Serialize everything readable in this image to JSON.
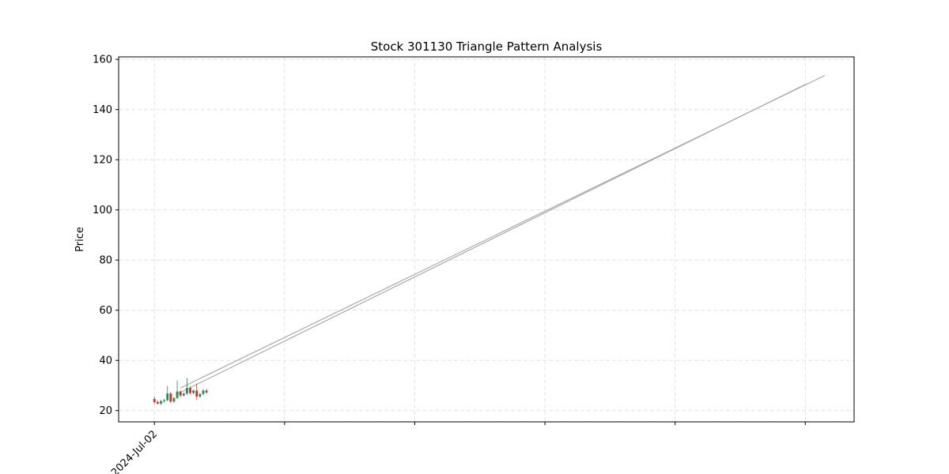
{
  "chart_data": {
    "type": "candlestick",
    "title": "Stock 301130 Triangle Pattern Analysis",
    "xlabel": "",
    "ylabel": "Price",
    "ylim": [
      15.5,
      161
    ],
    "xlim": [
      -11,
      215
    ],
    "x_ticks": [
      0,
      40,
      80,
      120,
      160,
      200
    ],
    "x_tick_labels": [
      "2024-Jul-02",
      "",
      "",
      "",
      "",
      ""
    ],
    "y_ticks": [
      20,
      40,
      60,
      80,
      100,
      120,
      140,
      160
    ],
    "y_tick_labels": [
      "20",
      "40",
      "60",
      "80",
      "100",
      "120",
      "140",
      "160"
    ],
    "grid": true,
    "colors": {
      "up": "#2e8b57",
      "down": "#c0392b",
      "trendline": "#aaaaaa",
      "grid": "#dddddd"
    },
    "candles": [
      {
        "x": 0,
        "open": 24.6,
        "high": 25.6,
        "low": 22.6,
        "close": 23.4
      },
      {
        "x": 1,
        "open": 23.4,
        "high": 24.0,
        "low": 22.4,
        "close": 22.8
      },
      {
        "x": 2,
        "open": 22.8,
        "high": 24.2,
        "low": 22.2,
        "close": 23.8
      },
      {
        "x": 3,
        "open": 23.8,
        "high": 24.6,
        "low": 23.0,
        "close": 24.2
      },
      {
        "x": 4,
        "open": 24.2,
        "high": 29.8,
        "low": 23.6,
        "close": 26.8
      },
      {
        "x": 5,
        "open": 26.8,
        "high": 27.4,
        "low": 23.0,
        "close": 23.6
      },
      {
        "x": 6,
        "open": 23.6,
        "high": 25.4,
        "low": 23.0,
        "close": 25.0
      },
      {
        "x": 7,
        "open": 25.0,
        "high": 32.0,
        "low": 24.6,
        "close": 27.6
      },
      {
        "x": 8,
        "open": 27.6,
        "high": 28.0,
        "low": 25.4,
        "close": 26.0
      },
      {
        "x": 9,
        "open": 26.0,
        "high": 27.2,
        "low": 25.6,
        "close": 26.8
      },
      {
        "x": 10,
        "open": 26.8,
        "high": 33.0,
        "low": 26.2,
        "close": 29.0
      },
      {
        "x": 11,
        "open": 29.0,
        "high": 29.6,
        "low": 26.4,
        "close": 27.0
      },
      {
        "x": 12,
        "open": 27.0,
        "high": 28.4,
        "low": 26.6,
        "close": 28.0
      },
      {
        "x": 13,
        "open": 28.0,
        "high": 30.8,
        "low": 24.2,
        "close": 25.6
      },
      {
        "x": 14,
        "open": 25.6,
        "high": 27.0,
        "low": 25.0,
        "close": 26.6
      },
      {
        "x": 15,
        "open": 26.6,
        "high": 28.6,
        "low": 26.2,
        "close": 28.0
      },
      {
        "x": 16,
        "open": 28.0,
        "high": 28.6,
        "low": 26.8,
        "close": 27.2
      }
    ],
    "trendlines": [
      {
        "x": [
          8,
          206
        ],
        "y": [
          29.0,
          153.6
        ]
      },
      {
        "x": [
          7,
          200
        ],
        "y": [
          26.6,
          150.0
        ]
      }
    ]
  }
}
